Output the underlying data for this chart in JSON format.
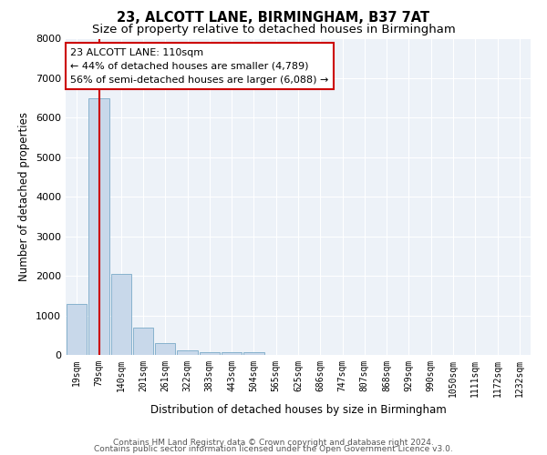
{
  "title": "23, ALCOTT LANE, BIRMINGHAM, B37 7AT",
  "subtitle": "Size of property relative to detached houses in Birmingham",
  "xlabel": "Distribution of detached houses by size in Birmingham",
  "ylabel": "Number of detached properties",
  "bar_color": "#c8d8ea",
  "bar_edge_color": "#7aaac8",
  "property_line_color": "#cc0000",
  "annotation_box_color": "#cc0000",
  "background_color": "#edf2f8",
  "grid_color": "#ffffff",
  "bins": [
    "19sqm",
    "79sqm",
    "140sqm",
    "201sqm",
    "261sqm",
    "322sqm",
    "383sqm",
    "443sqm",
    "504sqm",
    "565sqm",
    "625sqm",
    "686sqm",
    "747sqm",
    "807sqm",
    "868sqm",
    "929sqm",
    "990sqm",
    "1050sqm",
    "1111sqm",
    "1172sqm",
    "1232sqm"
  ],
  "values": [
    1300,
    6500,
    2050,
    680,
    290,
    120,
    75,
    60,
    80,
    0,
    0,
    0,
    0,
    0,
    0,
    0,
    0,
    0,
    0,
    0,
    0
  ],
  "annotation_line1": "23 ALCOTT LANE: 110sqm",
  "annotation_line2": "← 44% of detached houses are smaller (4,789)",
  "annotation_line3": "56% of semi-detached houses are larger (6,088) →",
  "ylim": [
    0,
    8000
  ],
  "yticks": [
    0,
    1000,
    2000,
    3000,
    4000,
    5000,
    6000,
    7000,
    8000
  ],
  "footer_line1": "Contains HM Land Registry data © Crown copyright and database right 2024.",
  "footer_line2": "Contains public sector information licensed under the Open Government Licence v3.0.",
  "title_fontsize": 10.5,
  "subtitle_fontsize": 9.5,
  "axis_label_fontsize": 8.5,
  "tick_fontsize": 7,
  "annotation_fontsize": 8,
  "footer_fontsize": 6.5,
  "property_sqm": 110,
  "bin_start_sqm": [
    19,
    79,
    140,
    201,
    261,
    322,
    383,
    443,
    504,
    565,
    625,
    686,
    747,
    807,
    868,
    929,
    990,
    1050,
    1111,
    1172,
    1232
  ]
}
